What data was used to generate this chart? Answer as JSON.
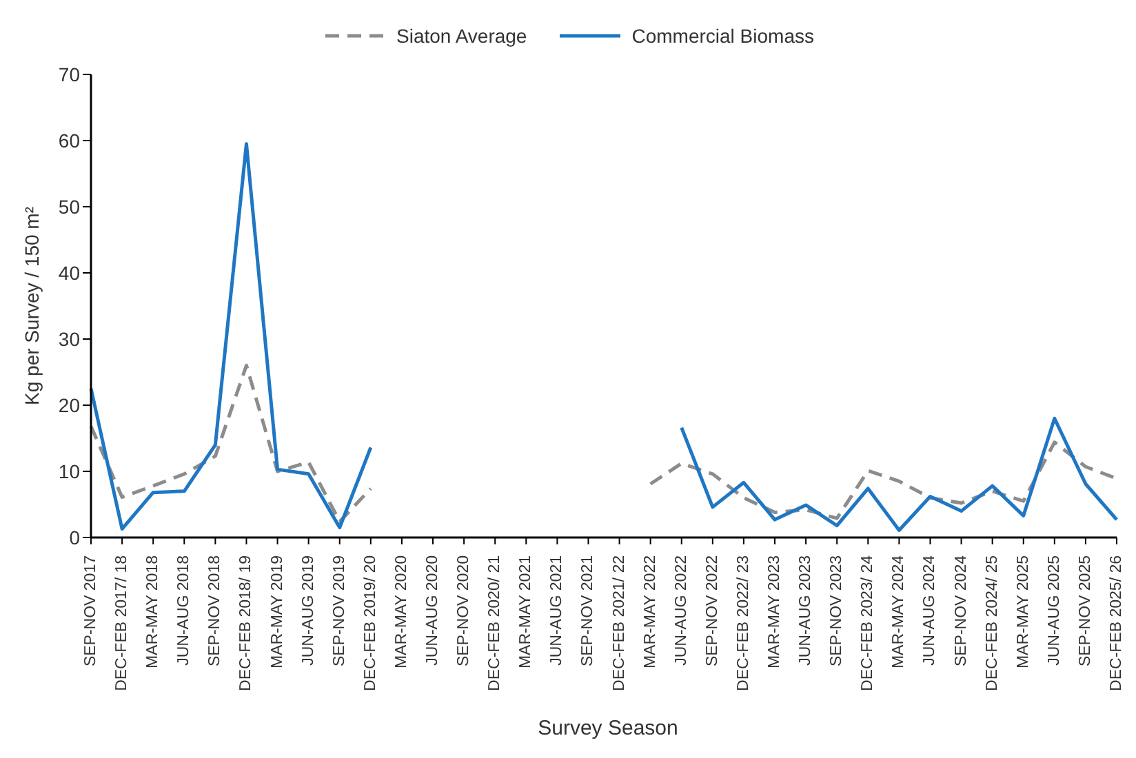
{
  "chart_data": {
    "type": "line",
    "xlabel": "Survey Season",
    "ylabel": "Kg per Survey / 150 m²",
    "categories": [
      "SEP-NOV 2017",
      "DEC-FEB 2017/ 18",
      "MAR-MAY 2018",
      "JUN-AUG 2018",
      "SEP-NOV 2018",
      "DEC-FEB 2018/ 19",
      "MAR-MAY 2019",
      "JUN-AUG 2019",
      "SEP-NOV 2019",
      "DEC-FEB 2019/ 20",
      "MAR-MAY 2020",
      "JUN-AUG 2020",
      "SEP-NOV 2020",
      "DEC-FEB 2020/ 21",
      "MAR-MAY 2021",
      "JUN-AUG 2021",
      "SEP-NOV 2021",
      "DEC-FEB 2021/ 22",
      "MAR-MAY 2022",
      "JUN-AUG 2022",
      "SEP-NOV 2022",
      "DEC-FEB 2022/ 23",
      "MAR-MAY 2023",
      "JUN-AUG 2023",
      "SEP-NOV 2023",
      "DEC-FEB 2023/ 24",
      "MAR-MAY 2024",
      "JUN-AUG 2024",
      "SEP-NOV 2024",
      "DEC-FEB 2024/ 25",
      "MAR-MAY 2025",
      "JUN-AUG 2025",
      "SEP-NOV 2025",
      "DEC-FEB 2025/ 26"
    ],
    "series": [
      {
        "name": "Siaton Average",
        "color": "#8c8c8c",
        "line_style": "dashed",
        "values": [
          16.8,
          6.1,
          7.8,
          9.6,
          12.3,
          26,
          10,
          11.4,
          2.4,
          7.4,
          null,
          null,
          null,
          null,
          null,
          null,
          null,
          null,
          8.1,
          11.2,
          9.6,
          6,
          3.8,
          4.2,
          2.9,
          10.1,
          8.5,
          6,
          5.2,
          7,
          5.5,
          14.4,
          10.7,
          8.9
        ]
      },
      {
        "name": "Commercial Biomass",
        "color": "#1f77c4",
        "line_style": "solid",
        "values": [
          22.5,
          1.3,
          6.8,
          7,
          14,
          59.5,
          10.3,
          9.6,
          1.5,
          13.6,
          null,
          null,
          null,
          null,
          null,
          null,
          null,
          null,
          null,
          16.6,
          4.6,
          8.3,
          2.7,
          4.9,
          1.8,
          7.4,
          1.1,
          6.2,
          4,
          7.8,
          3.3,
          18,
          8.1,
          2.7
        ]
      }
    ],
    "ylim": [
      0,
      70
    ],
    "yticks": [
      0,
      10,
      20,
      30,
      40,
      50,
      60,
      70
    ],
    "grid": false,
    "legend": "top",
    "marker": "none"
  }
}
